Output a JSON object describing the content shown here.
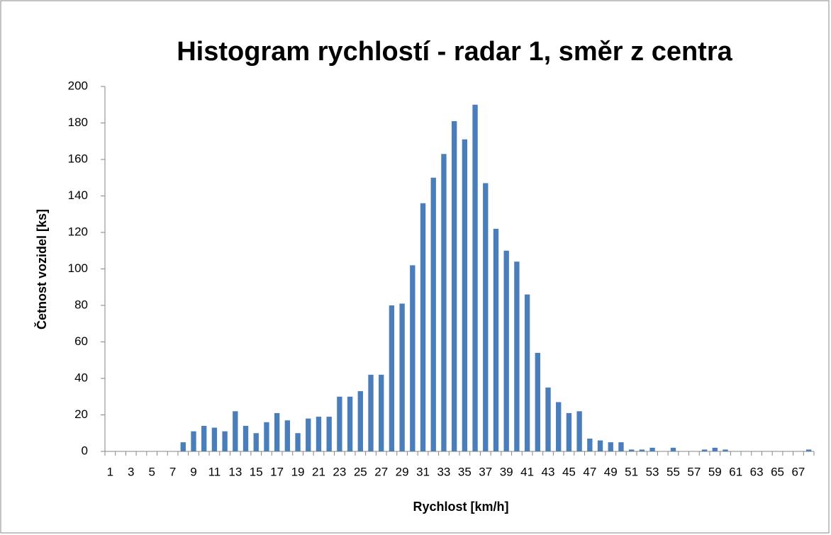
{
  "chart_data": {
    "type": "bar",
    "title": "Histogram rychlostí - radar 1, směr z centra",
    "x_label": "Rychlost [km/h]",
    "y_label": "Četnost vozidel [ks]",
    "categories": [
      "1",
      null,
      "3",
      null,
      "5",
      null,
      "7",
      null,
      "9",
      null,
      "11",
      null,
      "13",
      null,
      "15",
      null,
      "17",
      null,
      "19",
      null,
      "21",
      null,
      "23",
      null,
      "25",
      null,
      "27",
      null,
      "29",
      null,
      "31",
      null,
      "33",
      null,
      "35",
      null,
      "37",
      null,
      "39",
      null,
      "41",
      null,
      "43",
      null,
      "45",
      null,
      "47",
      null,
      "49",
      null,
      "51",
      null,
      "53",
      null,
      "55",
      null,
      "57",
      null,
      "59",
      null,
      "61",
      null,
      "63",
      null,
      "65",
      null,
      "67",
      null
    ],
    "values": [
      0,
      0,
      0,
      0,
      0,
      0,
      0,
      5,
      11,
      14,
      13,
      11,
      22,
      14,
      10,
      16,
      21,
      17,
      10,
      18,
      19,
      19,
      30,
      30,
      33,
      42,
      42,
      80,
      81,
      102,
      136,
      150,
      163,
      181,
      171,
      190,
      147,
      122,
      110,
      104,
      86,
      54,
      35,
      27,
      21,
      22,
      7,
      6,
      5,
      5,
      1,
      1,
      2,
      0,
      2,
      0,
      0,
      1,
      2,
      1,
      0,
      0,
      0,
      0,
      0,
      0,
      0,
      1
    ],
    "color": "#4a7ebb",
    "ylim": [
      0,
      200
    ],
    "yticks": [
      0,
      20,
      40,
      60,
      80,
      100,
      120,
      140,
      160,
      180,
      200
    ],
    "grid": false
  }
}
